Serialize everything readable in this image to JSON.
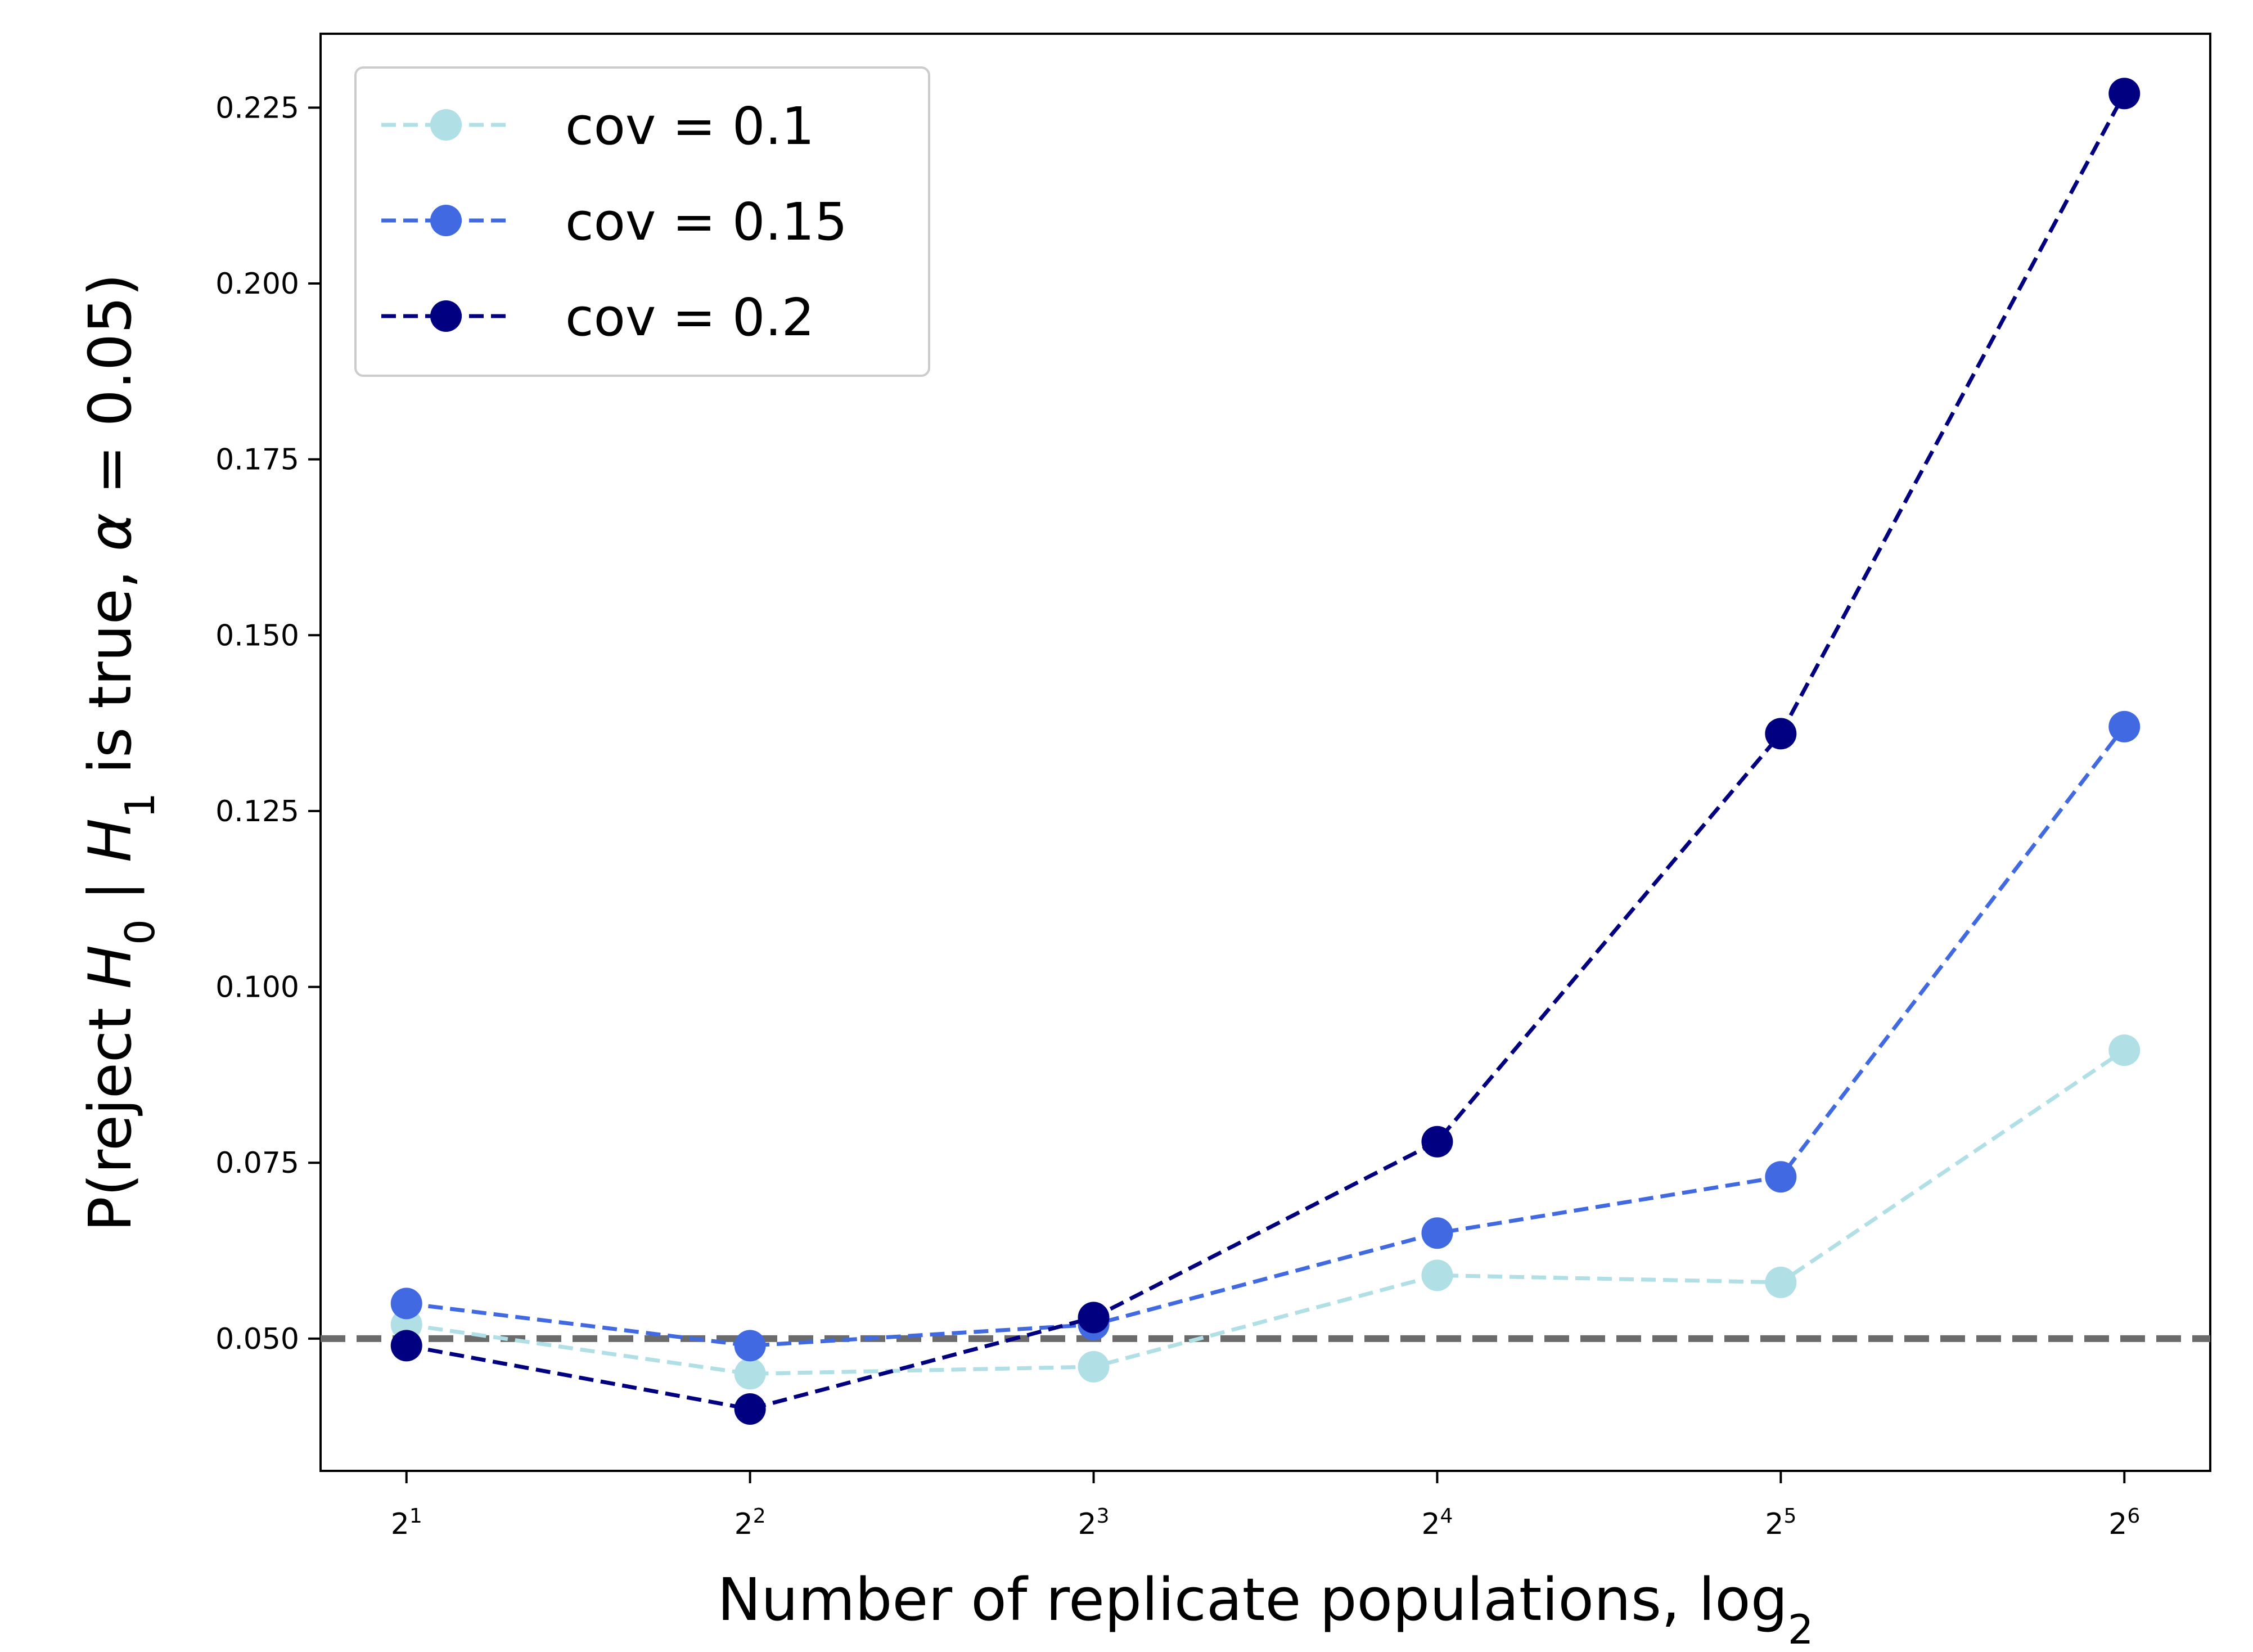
{
  "chart_data": {
    "type": "line",
    "title": "",
    "xlabel": "Number of replicate populations, log",
    "xlabel_subscript": "2",
    "ylabel": {
      "prefix": "P(reject ",
      "h0": "H",
      "h0_sub": "0",
      "mid": " | ",
      "h1": "H",
      "h1_sub": "1",
      "mid2": " is true, ",
      "alpha": "α",
      "suffix": " = 0.05)"
    },
    "x": [
      1,
      2,
      3,
      4,
      5,
      6
    ],
    "x_tick_labels": [
      {
        "base": "2",
        "exp": "1"
      },
      {
        "base": "2",
        "exp": "2"
      },
      {
        "base": "2",
        "exp": "3"
      },
      {
        "base": "2",
        "exp": "4"
      },
      {
        "base": "2",
        "exp": "5"
      },
      {
        "base": "2",
        "exp": "6"
      }
    ],
    "xlim": [
      0.75,
      6.25
    ],
    "ylim": [
      0.0312,
      0.2355
    ],
    "y_ticks": [
      0.05,
      0.075,
      0.1,
      0.125,
      0.15,
      0.175,
      0.2,
      0.225
    ],
    "y_tick_labels": [
      "0.050",
      "0.075",
      "0.100",
      "0.125",
      "0.150",
      "0.175",
      "0.200",
      "0.225"
    ],
    "reference_line": {
      "y": 0.05,
      "color": "#6b6b6b"
    },
    "legend_position": "upper-left",
    "series": [
      {
        "name": "cov = 0.1",
        "color": "#b0dfe5",
        "values": [
          0.052,
          0.045,
          0.046,
          0.059,
          0.058,
          0.091
        ]
      },
      {
        "name": "cov = 0.15",
        "color": "#4169e1",
        "values": [
          0.055,
          0.049,
          0.052,
          0.065,
          0.073,
          0.137
        ]
      },
      {
        "name": "cov = 0.2",
        "color": "#000080",
        "values": [
          0.049,
          0.04,
          0.053,
          0.078,
          0.136,
          0.227
        ]
      }
    ]
  }
}
